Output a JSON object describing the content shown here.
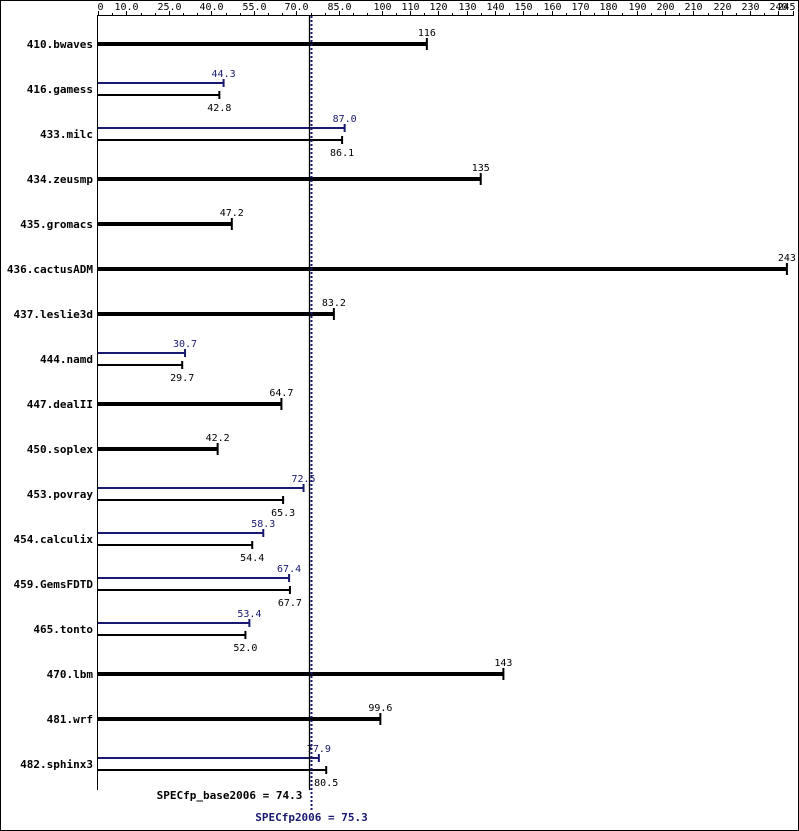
{
  "chart_data": {
    "type": "bar",
    "orientation": "horizontal",
    "title": "",
    "xlabel": "",
    "ylabel": "",
    "xlim": [
      0,
      246
    ],
    "grid": false,
    "colors": {
      "base": "#000000",
      "peak": "#191970",
      "frame": "#000000"
    },
    "x_ticks": [
      {
        "v": 0,
        "t": "0"
      },
      {
        "v": 10,
        "t": "10.0"
      },
      {
        "v": 25,
        "t": "25.0"
      },
      {
        "v": 40,
        "t": "40.0"
      },
      {
        "v": 55,
        "t": "55.0"
      },
      {
        "v": 70,
        "t": "70.0"
      },
      {
        "v": 85,
        "t": "85.0"
      },
      {
        "v": 100,
        "t": "100"
      },
      {
        "v": 110,
        "t": "110"
      },
      {
        "v": 120,
        "t": "120"
      },
      {
        "v": 130,
        "t": "130"
      },
      {
        "v": 140,
        "t": "140"
      },
      {
        "v": 150,
        "t": "150"
      },
      {
        "v": 160,
        "t": "160"
      },
      {
        "v": 170,
        "t": "170"
      },
      {
        "v": 180,
        "t": "180"
      },
      {
        "v": 190,
        "t": "190"
      },
      {
        "v": 200,
        "t": "200"
      },
      {
        "v": 210,
        "t": "210"
      },
      {
        "v": 220,
        "t": "220"
      },
      {
        "v": 230,
        "t": "230"
      },
      {
        "v": 240,
        "t": "240"
      },
      {
        "v": 245,
        "t": "245"
      }
    ],
    "categories": [
      "410.bwaves",
      "416.gamess",
      "433.milc",
      "434.zeusmp",
      "435.gromacs",
      "436.cactusADM",
      "437.leslie3d",
      "444.namd",
      "447.dealII",
      "450.soplex",
      "453.povray",
      "454.calculix",
      "459.GemsFDTD",
      "465.tonto",
      "470.lbm",
      "481.wrf",
      "482.sphinx3"
    ],
    "series": [
      {
        "name": "SPECfp_base2006",
        "values": [
          116,
          42.8,
          86.1,
          135,
          47.2,
          243,
          83.2,
          29.7,
          64.7,
          42.2,
          65.3,
          54.4,
          67.7,
          52.0,
          143,
          99.6,
          80.5
        ],
        "labels": [
          "116",
          "42.8",
          "86.1",
          "135",
          "47.2",
          "243",
          "83.2",
          "29.7",
          "64.7",
          "42.2",
          "65.3",
          "54.4",
          "67.7",
          "52.0",
          "143",
          "99.6",
          "80.5"
        ]
      },
      {
        "name": "SPECfp2006",
        "values": [
          null,
          44.3,
          87.0,
          null,
          null,
          null,
          null,
          30.7,
          null,
          null,
          72.5,
          58.3,
          67.4,
          53.4,
          null,
          null,
          77.9
        ],
        "labels": [
          null,
          "44.3",
          "87.0",
          null,
          null,
          null,
          null,
          "30.7",
          null,
          null,
          "72.5",
          "58.3",
          "67.4",
          "53.4",
          null,
          null,
          "77.9"
        ]
      }
    ],
    "reference_lines": [
      {
        "name": "SPECfp_base2006",
        "value": 74.3,
        "label": "SPECfp_base2006 = 74.3",
        "style": "solid"
      },
      {
        "name": "SPECfp2006",
        "value": 75.3,
        "label": "SPECfp2006 = 75.3",
        "style": "dotted"
      }
    ]
  }
}
